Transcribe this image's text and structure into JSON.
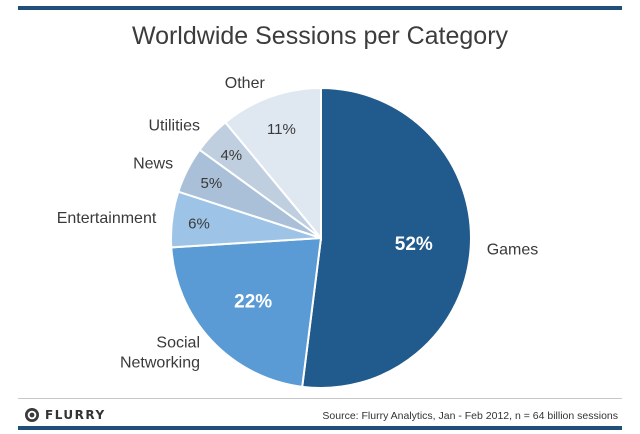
{
  "chart_data": {
    "type": "pie",
    "title": "Worldwide Sessions per Category",
    "slices": [
      {
        "label": "Games",
        "label_lines": [
          "Games"
        ],
        "value": 52,
        "value_label": "52%",
        "color": "#215a8c",
        "value_color": "#ffffff"
      },
      {
        "label": "Social Networking",
        "label_lines": [
          "Social",
          "Networking"
        ],
        "value": 22,
        "value_label": "22%",
        "color": "#5b9bd5",
        "value_color": "#ffffff"
      },
      {
        "label": "Entertainment",
        "label_lines": [
          "Entertainment"
        ],
        "value": 6,
        "value_label": "6%",
        "color": "#9dc3e6",
        "value_color": "#3a3a3a"
      },
      {
        "label": "News",
        "label_lines": [
          "News"
        ],
        "value": 5,
        "value_label": "5%",
        "color": "#a9c0d8",
        "value_color": "#3a3a3a"
      },
      {
        "label": "Utilities",
        "label_lines": [
          "Utilities"
        ],
        "value": 4,
        "value_label": "4%",
        "color": "#bfcfdf",
        "value_color": "#3a3a3a"
      },
      {
        "label": "Other",
        "label_lines": [
          "Other"
        ],
        "value": 11,
        "value_label": "11%",
        "color": "#dfe7f1",
        "value_color": "#3a3a3a"
      }
    ]
  },
  "footer": {
    "brand": "FLURRY",
    "source": "Source: Flurry Analytics, Jan - Feb 2012, n = 64 billion sessions"
  }
}
